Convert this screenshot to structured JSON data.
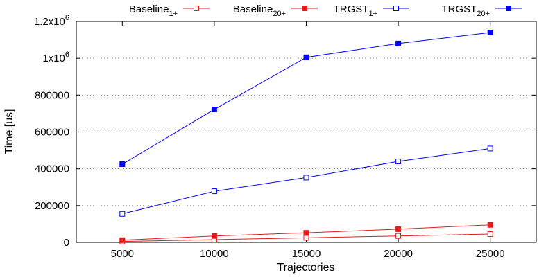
{
  "chart_data": {
    "type": "line",
    "xlabel": "Trajectories",
    "ylabel": "Time [us]",
    "x": [
      5000,
      10000,
      15000,
      20000,
      25000
    ],
    "xlim": [
      2500,
      27500
    ],
    "ylim": [
      0,
      1200000
    ],
    "x_ticks": [
      "5000",
      "10000",
      "15000",
      "20000",
      "25000"
    ],
    "y_ticks": [
      {
        "value": 0,
        "label": "0",
        "sup": ""
      },
      {
        "value": 200000,
        "label": "200000",
        "sup": ""
      },
      {
        "value": 400000,
        "label": "400000",
        "sup": ""
      },
      {
        "value": 600000,
        "label": "600000",
        "sup": ""
      },
      {
        "value": 800000,
        "label": "800000",
        "sup": ""
      },
      {
        "value": 1000000,
        "label": "1x10",
        "sup": "6"
      },
      {
        "value": 1200000,
        "label": "1.2x10",
        "sup": "6"
      }
    ],
    "grid": "horizontal-dotted",
    "legend_position": "top",
    "series": [
      {
        "name": "Baseline",
        "sub": "1+",
        "color": "#e41a1c",
        "marker": "open-square",
        "values": [
          5000,
          15000,
          25000,
          35000,
          45000
        ]
      },
      {
        "name": "Baseline",
        "sub": "20+",
        "color": "#e41a1c",
        "marker": "filled-square",
        "values": [
          12000,
          35000,
          52000,
          72000,
          95000
        ]
      },
      {
        "name": "TRGST",
        "sub": "1+",
        "color": "#0000ff",
        "marker": "open-square",
        "values": [
          155000,
          278000,
          352000,
          440000,
          510000
        ]
      },
      {
        "name": "TRGST",
        "sub": "20+",
        "color": "#0000ff",
        "marker": "filled-square",
        "values": [
          425000,
          722000,
          1005000,
          1080000,
          1140000
        ]
      }
    ]
  }
}
